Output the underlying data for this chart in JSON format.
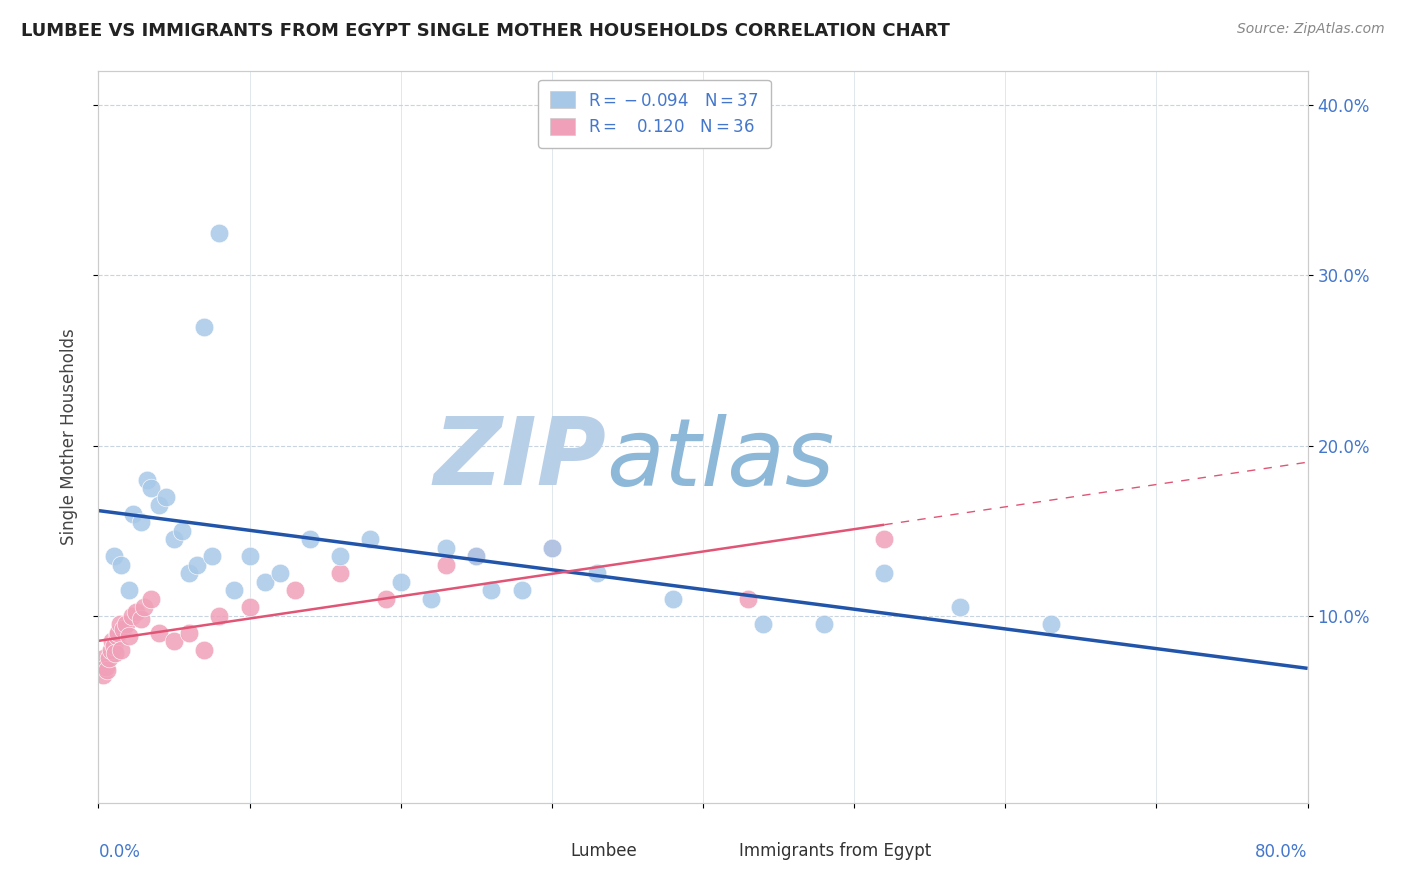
{
  "title": "LUMBEE VS IMMIGRANTS FROM EGYPT SINGLE MOTHER HOUSEHOLDS CORRELATION CHART",
  "source": "Source: ZipAtlas.com",
  "ylabel": "Single Mother Households",
  "lumbee_color": "#a8c8e8",
  "egypt_color": "#f0a0b8",
  "lumbee_line_color": "#2255aa",
  "egypt_line_color": "#e05575",
  "r_value_color": "#4477cc",
  "watermark_color_zip": "#b8cfe8",
  "watermark_color_atlas": "#8eb8d8",
  "background_color": "#ffffff",
  "grid_color": "#c8d4e0",
  "lumbee_x": [
    1.0,
    1.5,
    2.0,
    2.3,
    2.8,
    3.2,
    3.5,
    4.0,
    4.5,
    5.0,
    5.5,
    6.0,
    6.5,
    7.0,
    7.5,
    8.0,
    9.0,
    10.0,
    11.0,
    12.0,
    14.0,
    16.0,
    18.0,
    20.0,
    22.0,
    25.0,
    28.0,
    33.0,
    38.0,
    44.0,
    52.0,
    57.0,
    63.0,
    48.0,
    26.0,
    23.0,
    30.0
  ],
  "lumbee_y": [
    13.5,
    13.0,
    11.5,
    16.0,
    15.5,
    18.0,
    17.5,
    16.5,
    17.0,
    14.5,
    15.0,
    12.5,
    13.0,
    27.0,
    13.5,
    32.5,
    11.5,
    13.5,
    12.0,
    12.5,
    14.5,
    13.5,
    14.5,
    12.0,
    11.0,
    13.5,
    11.5,
    12.5,
    11.0,
    9.5,
    12.5,
    10.5,
    9.5,
    9.5,
    11.5,
    14.0,
    14.0
  ],
  "egypt_x": [
    0.2,
    0.3,
    0.4,
    0.5,
    0.6,
    0.7,
    0.8,
    0.9,
    1.0,
    1.1,
    1.2,
    1.3,
    1.4,
    1.5,
    1.6,
    1.8,
    2.0,
    2.2,
    2.5,
    2.8,
    3.0,
    3.5,
    4.0,
    5.0,
    6.0,
    7.0,
    8.0,
    10.0,
    13.0,
    16.0,
    19.0,
    23.0,
    25.0,
    30.0,
    43.0,
    52.0
  ],
  "egypt_y": [
    7.0,
    6.5,
    7.5,
    7.0,
    6.8,
    7.5,
    8.0,
    8.5,
    8.2,
    7.8,
    8.8,
    9.0,
    9.5,
    8.0,
    9.2,
    9.5,
    8.8,
    10.0,
    10.2,
    9.8,
    10.5,
    11.0,
    9.0,
    8.5,
    9.0,
    8.0,
    10.0,
    10.5,
    11.5,
    12.5,
    11.0,
    13.0,
    13.5,
    14.0,
    11.0,
    14.5
  ],
  "xlim": [
    0,
    80
  ],
  "ylim": [
    -1,
    42
  ],
  "yticks": [
    10,
    20,
    30,
    40
  ],
  "ytick_labels_right": [
    "10.0%",
    "20.0%",
    "30.0%",
    "40.0%"
  ],
  "marker_size": 180,
  "title_fontsize": 13,
  "axis_label_color": "#4477cc"
}
